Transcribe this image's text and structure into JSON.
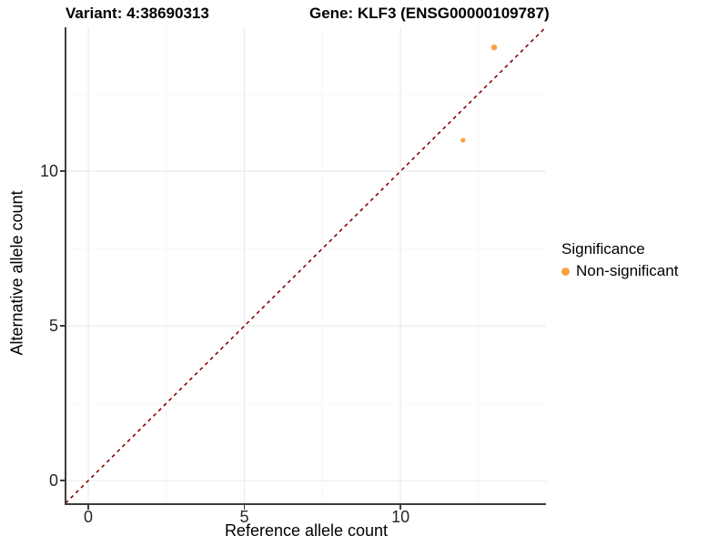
{
  "title": {
    "variant": "Variant: 4:38690313",
    "gene": "Gene: KLF3 (ENSG00000109787)"
  },
  "axes": {
    "x_title": "Reference allele count",
    "y_title": "Alternative allele count"
  },
  "legend": {
    "title": "Significance",
    "items": [
      {
        "label": "Non-significant",
        "color": "#F9A242"
      }
    ]
  },
  "colors": {
    "background": "#FFFFFF",
    "grid_major": "#EBEBEB",
    "grid_minor": "#F6F6F6",
    "axis": "#3C3C3C",
    "tick_text": "#262626",
    "point_orange": "#F9A242",
    "reference_line": "#8B0000"
  },
  "chart_data": {
    "type": "scatter",
    "title": "Variant: 4:38690313 | Gene: KLF3 (ENSG00000109787)",
    "xlabel": "Reference allele count",
    "ylabel": "Alternative allele count",
    "xlim": [
      -0.7,
      14.66
    ],
    "ylim": [
      -0.73,
      14.65
    ],
    "x_ticks": [
      0,
      5,
      10
    ],
    "y_ticks": [
      0,
      5,
      10
    ],
    "x_minor_ticks": [
      2.5,
      7.5,
      12.5
    ],
    "y_minor_ticks": [
      2.5,
      7.5,
      12.5
    ],
    "grid": "major+minor",
    "legend_position": "right",
    "series": [
      {
        "name": "Non-significant",
        "color": "#F9A242",
        "points": [
          [
            12,
            11,
            2.6
          ],
          [
            13,
            14,
            3.2
          ]
        ]
      }
    ],
    "reference_line": {
      "type": "identity y=x",
      "style": "dashed",
      "color": "#8B0000",
      "from": [
        -0.73,
        -0.73
      ],
      "to": [
        14.66,
        14.66
      ]
    }
  }
}
